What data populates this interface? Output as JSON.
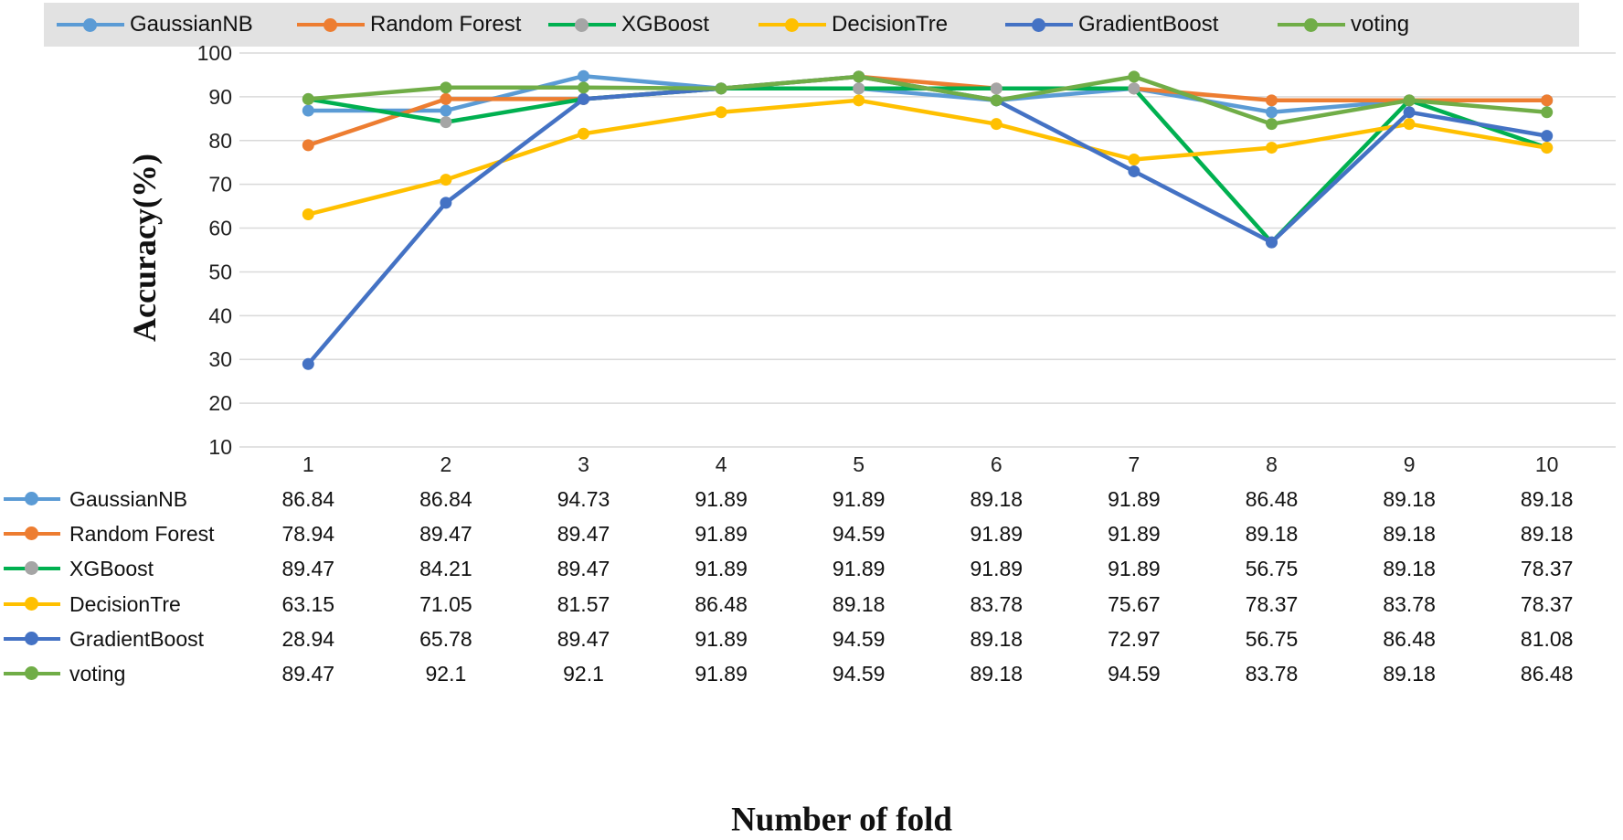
{
  "chart_data": {
    "type": "line",
    "title": "",
    "xlabel": "Number of fold",
    "ylabel": "Accuracy(%)",
    "ylim": [
      10,
      100
    ],
    "yticks": [
      10,
      20,
      30,
      40,
      50,
      60,
      70,
      80,
      90,
      100
    ],
    "categories": [
      "1",
      "2",
      "3",
      "4",
      "5",
      "6",
      "7",
      "8",
      "9",
      "10"
    ],
    "grid": "horizontal",
    "legend_position": "top",
    "data_table": true,
    "series": [
      {
        "name": "GaussianNB",
        "color": "#5b9bd5",
        "values": [
          86.84,
          86.84,
          94.73,
          91.89,
          91.89,
          89.18,
          91.89,
          86.48,
          89.18,
          89.18
        ],
        "labels": [
          "86.84",
          "86.84",
          "94.73",
          "91.89",
          "91.89",
          "89.18",
          "91.89",
          "86.48",
          "89.18",
          "89.18"
        ]
      },
      {
        "name": "Random Forest",
        "color": "#ed7d31",
        "values": [
          78.94,
          89.47,
          89.47,
          91.89,
          94.59,
          91.89,
          91.89,
          89.18,
          89.18,
          89.18
        ],
        "labels": [
          "78.94",
          "89.47",
          "89.47",
          "91.89",
          "94.59",
          "91.89",
          "91.89",
          "89.18",
          "89.18",
          "89.18"
        ]
      },
      {
        "name": "XGBoost",
        "color": "#00b050",
        "marker_color": "#a5a5a5",
        "values": [
          89.47,
          84.21,
          89.47,
          91.89,
          91.89,
          91.89,
          91.89,
          56.75,
          89.18,
          78.37
        ],
        "labels": [
          "89.47",
          "84.21",
          "89.47",
          "91.89",
          "91.89",
          "91.89",
          "91.89",
          "56.75",
          "89.18",
          "78.37"
        ]
      },
      {
        "name": "DecisionTre",
        "color": "#ffc000",
        "values": [
          63.15,
          71.05,
          81.57,
          86.48,
          89.18,
          83.78,
          75.67,
          78.37,
          83.78,
          78.37
        ],
        "labels": [
          "63.15",
          "71.05",
          "81.57",
          "86.48",
          "89.18",
          "83.78",
          "75.67",
          "78.37",
          "83.78",
          "78.37"
        ]
      },
      {
        "name": "GradientBoost",
        "color": "#4472c4",
        "values": [
          28.94,
          65.78,
          89.47,
          91.89,
          94.59,
          89.18,
          72.97,
          56.75,
          86.48,
          81.08
        ],
        "labels": [
          "28.94",
          "65.78",
          "89.47",
          "91.89",
          "94.59",
          "89.18",
          "72.97",
          "56.75",
          "86.48",
          "81.08"
        ]
      },
      {
        "name": "voting",
        "color": "#70ad47",
        "values": [
          89.47,
          92.1,
          92.1,
          91.89,
          94.59,
          89.18,
          94.59,
          83.78,
          89.18,
          86.48
        ],
        "labels": [
          "89.47",
          "92.1",
          "92.1",
          "91.89",
          "94.59",
          "89.18",
          "94.59",
          "83.78",
          "89.18",
          "86.48"
        ]
      }
    ]
  }
}
